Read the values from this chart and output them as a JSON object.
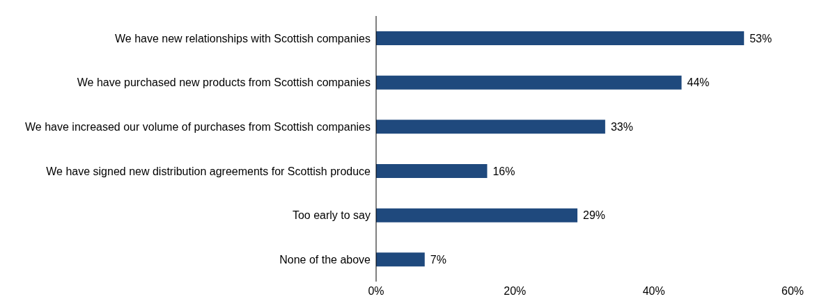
{
  "chart_data": {
    "type": "bar",
    "orientation": "horizontal",
    "categories": [
      "We have new relationships with Scottish companies",
      "We have purchased new products from Scottish companies",
      "We have increased our volume of purchases from Scottish companies",
      "We have signed new distribution agreements for Scottish produce",
      "Too early to say",
      "None of the above"
    ],
    "values": [
      53,
      44,
      33,
      16,
      29,
      7
    ],
    "value_labels": [
      "53%",
      "44%",
      "33%",
      "16%",
      "29%",
      "7%"
    ],
    "color": "#1f497d",
    "xlim": [
      0,
      60
    ],
    "xticks": [
      {
        "value": 0,
        "label": "0%"
      },
      {
        "value": 20,
        "label": "20%"
      },
      {
        "value": 40,
        "label": "40%"
      },
      {
        "value": 60,
        "label": "60%"
      }
    ],
    "grid": false,
    "legend": false
  }
}
